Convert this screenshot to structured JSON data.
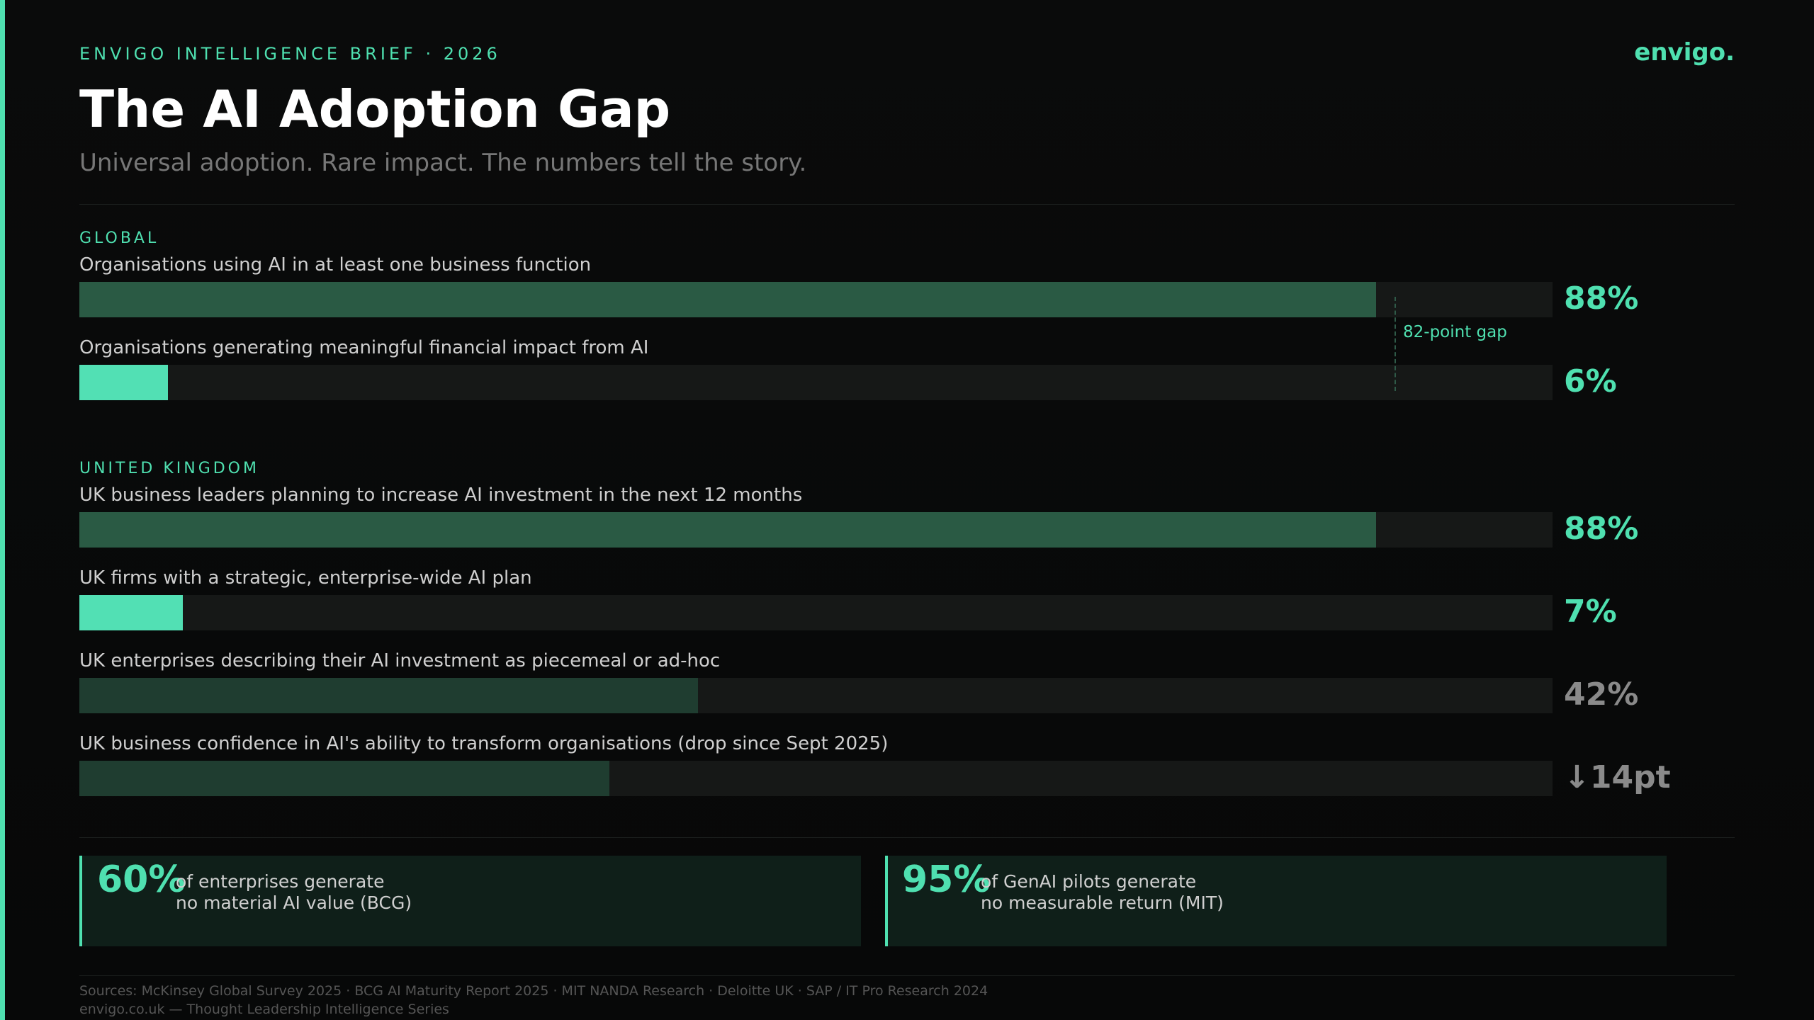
{
  "header": {
    "eyebrow": "ENVIGO INTELLIGENCE BRIEF · 2026",
    "title": "The AI Adoption Gap",
    "subtitle": "Universal adoption. Rare impact. The numbers tell the story.",
    "logo": "envigo."
  },
  "chart_data": {
    "type": "bar",
    "xlim": [
      0,
      100
    ],
    "sections": [
      {
        "name": "GLOBAL",
        "bars": [
          {
            "label": "Organisations using AI in at least one business function",
            "value": 88,
            "value_label": "88%",
            "color": "#2a5a44",
            "label_color": "#4fe0b0"
          },
          {
            "label": "Organisations generating meaningful financial impact from AI",
            "value": 6,
            "value_label": "6%",
            "color": "#52e0b4",
            "label_color": "#4fe0b0"
          }
        ],
        "annotation": "82-point gap"
      },
      {
        "name": "UNITED KINGDOM",
        "bars": [
          {
            "label": "UK business leaders planning to increase AI investment in the next 12 months",
            "value": 88,
            "value_label": "88%",
            "color": "#2a5a44",
            "label_color": "#4fe0b0"
          },
          {
            "label": "UK firms with a strategic, enterprise-wide AI plan",
            "value": 7,
            "value_label": "7%",
            "color": "#52e0b4",
            "label_color": "#4fe0b0"
          },
          {
            "label": "UK enterprises describing their AI investment as piecemeal or ad-hoc",
            "value": 42,
            "value_label": "42%",
            "color": "#1f3d30",
            "label_color": "#8a8a8a"
          },
          {
            "label": "UK business confidence in AI's ability to transform organisations (drop since Sept 2025)",
            "value": 36,
            "change": "↓14pt",
            "color": "#1f3d30",
            "label_color": "#8a8a8a"
          }
        ]
      }
    ]
  },
  "callouts": [
    {
      "stat": "60%",
      "lines": [
        "of enterprises generate",
        "no material AI value (BCG)"
      ]
    },
    {
      "stat": "95%",
      "lines": [
        "of GenAI pilots generate",
        "no measurable return (MIT)"
      ]
    }
  ],
  "footer": {
    "sources": "Sources: McKinsey Global Survey 2025 · BCG AI Maturity Report 2025 · MIT NANDA Research · Deloitte UK · SAP / IT Pro Research 2024",
    "credit": "envigo.co.uk — Thought Leadership Intelligence Series"
  }
}
